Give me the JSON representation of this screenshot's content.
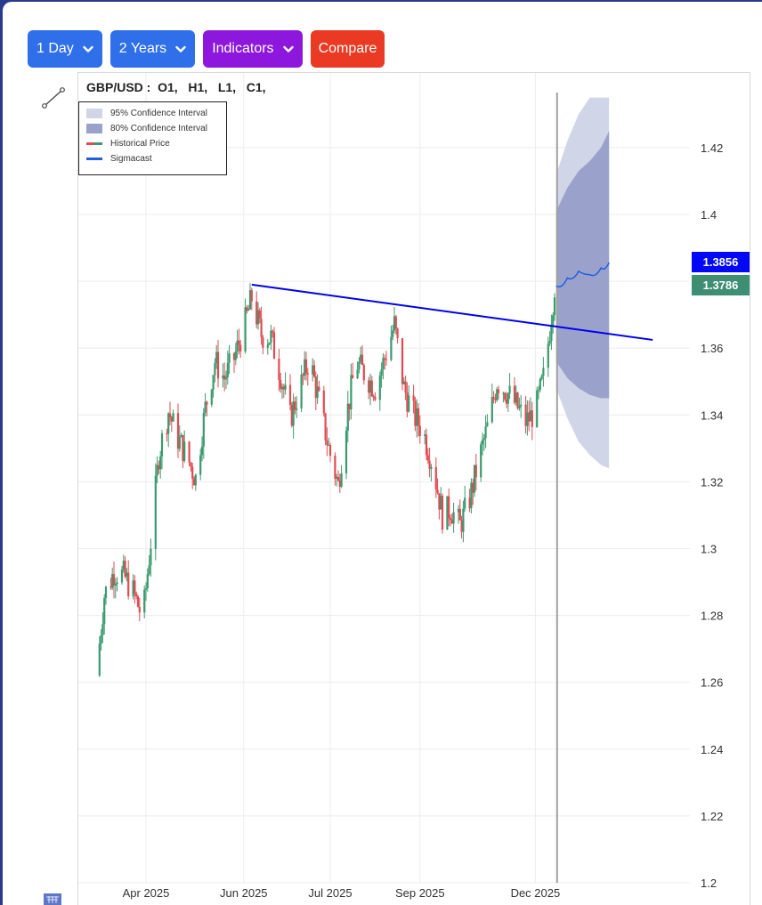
{
  "toolbar": {
    "interval_label": "1 Day",
    "range_label": "2 Years",
    "indicators_label": "Indicators",
    "compare_label": "Compare"
  },
  "colors": {
    "button_blue": "#2f6fea",
    "button_purple": "#8d17dc",
    "button_red": "#ea3a23",
    "candle_up": "#3a9a6e",
    "candle_down": "#e24b52",
    "trendline": "#0000ee",
    "sigmacast": "#1f5fe0",
    "ci95": "#d1d5e8",
    "ci80": "#9aa2cc",
    "tag_forecast": "#0008f5",
    "tag_last": "#3d8e72"
  },
  "header": {
    "symbol": "GBP/USD :",
    "ohlc": "O1,   H1,   L1,   C1,"
  },
  "legend": {
    "ci95": "95% Confidence Interval",
    "ci80": "80% Confidence Interval",
    "historical": "Historical Price",
    "sigmacast": "Sigmacast"
  },
  "price_tags": {
    "forecast": "1.3856",
    "last": "1.3786"
  },
  "icons": {
    "line_tool": "trendline-tool-icon",
    "bottom": "basket-icon"
  },
  "chart_data": {
    "type": "candlestick",
    "symbol": "GBP/USD",
    "x_tick_labels": [
      "Apr 2025",
      "Jun 2025",
      "Jul 2025",
      "Sep 2025",
      "Dec 2025"
    ],
    "y_ticks": [
      1.2,
      1.22,
      1.24,
      1.26,
      1.28,
      1.3,
      1.32,
      1.34,
      1.36,
      1.38,
      1.4,
      1.42
    ],
    "y_tick_labels": [
      "1.2",
      "1.22",
      "1.24",
      "1.26",
      "1.28",
      "1.3",
      "1.32",
      "1.34",
      "1.36",
      "1.38",
      "1.4",
      "1.42"
    ],
    "ylim": [
      1.2,
      1.435
    ],
    "grid": true,
    "legend_position": "top-left",
    "close_path": [
      [
        "2025-03-01",
        1.262
      ],
      [
        "2025-03-06",
        1.286
      ],
      [
        "2025-03-12",
        1.293
      ],
      [
        "2025-03-18",
        1.292
      ],
      [
        "2025-03-24",
        1.287
      ],
      [
        "2025-03-30",
        1.279
      ],
      [
        "2025-04-04",
        1.302
      ],
      [
        "2025-04-09",
        1.328
      ],
      [
        "2025-04-15",
        1.341
      ],
      [
        "2025-04-21",
        1.333
      ],
      [
        "2025-04-27",
        1.327
      ],
      [
        "2025-05-02",
        1.321
      ],
      [
        "2025-05-08",
        1.342
      ],
      [
        "2025-05-14",
        1.356
      ],
      [
        "2025-05-20",
        1.351
      ],
      [
        "2025-05-26",
        1.357
      ],
      [
        "2025-06-01",
        1.366
      ],
      [
        "2025-06-06",
        1.375
      ],
      [
        "2025-06-12",
        1.364
      ],
      [
        "2025-06-18",
        1.363
      ],
      [
        "2025-06-24",
        1.352
      ],
      [
        "2025-06-30",
        1.339
      ],
      [
        "2025-07-06",
        1.348
      ],
      [
        "2025-07-12",
        1.357
      ],
      [
        "2025-07-18",
        1.344
      ],
      [
        "2025-07-24",
        1.33
      ],
      [
        "2025-07-30",
        1.319
      ],
      [
        "2025-08-04",
        1.339
      ],
      [
        "2025-08-10",
        1.356
      ],
      [
        "2025-08-16",
        1.352
      ],
      [
        "2025-08-22",
        1.348
      ],
      [
        "2025-08-28",
        1.357
      ],
      [
        "2025-09-03",
        1.367
      ],
      [
        "2025-09-09",
        1.348
      ],
      [
        "2025-09-15",
        1.34
      ],
      [
        "2025-09-21",
        1.335
      ],
      [
        "2025-09-27",
        1.325
      ],
      [
        "2025-10-03",
        1.31
      ],
      [
        "2025-10-08",
        1.312
      ],
      [
        "2025-10-14",
        1.307
      ],
      [
        "2025-10-20",
        1.315
      ],
      [
        "2025-10-26",
        1.327
      ],
      [
        "2025-11-01",
        1.338
      ],
      [
        "2025-11-06",
        1.35
      ],
      [
        "2025-11-12",
        1.347
      ],
      [
        "2025-11-18",
        1.343
      ],
      [
        "2025-11-24",
        1.338
      ],
      [
        "2025-11-30",
        1.341
      ],
      [
        "2025-12-06",
        1.353
      ],
      [
        "2025-12-12",
        1.3786
      ]
    ],
    "trendline": {
      "start": [
        "2025-06-06",
        1.379
      ],
      "end": [
        "2026-01-20",
        1.363
      ]
    },
    "forecast_start": "2025-12-13",
    "sigmacast": [
      [
        "2025-12-13",
        1.3786
      ],
      [
        "2025-12-20",
        1.381
      ],
      [
        "2025-12-27",
        1.383
      ],
      [
        "2026-01-03",
        1.382
      ],
      [
        "2026-01-10",
        1.384
      ],
      [
        "2026-01-15",
        1.3856
      ]
    ],
    "ci80": {
      "upper": [
        [
          "2025-12-13",
          1.401
        ],
        [
          "2025-12-20",
          1.408
        ],
        [
          "2025-12-27",
          1.413
        ],
        [
          "2026-01-03",
          1.416
        ],
        [
          "2026-01-10",
          1.42
        ],
        [
          "2026-01-15",
          1.425
        ]
      ],
      "lower": [
        [
          "2025-12-13",
          1.356
        ],
        [
          "2025-12-20",
          1.351
        ],
        [
          "2025-12-27",
          1.348
        ],
        [
          "2026-01-03",
          1.346
        ],
        [
          "2026-01-10",
          1.345
        ],
        [
          "2026-01-15",
          1.345
        ]
      ]
    },
    "ci95": {
      "upper": [
        [
          "2025-12-13",
          1.412
        ],
        [
          "2025-12-20",
          1.422
        ],
        [
          "2025-12-27",
          1.43
        ],
        [
          "2026-01-03",
          1.435
        ],
        [
          "2026-01-10",
          1.435
        ],
        [
          "2026-01-15",
          1.435
        ]
      ],
      "lower": [
        [
          "2025-12-13",
          1.348
        ],
        [
          "2025-12-20",
          1.339
        ],
        [
          "2025-12-27",
          1.332
        ],
        [
          "2026-01-03",
          1.328
        ],
        [
          "2026-01-10",
          1.325
        ],
        [
          "2026-01-15",
          1.324
        ]
      ]
    }
  }
}
